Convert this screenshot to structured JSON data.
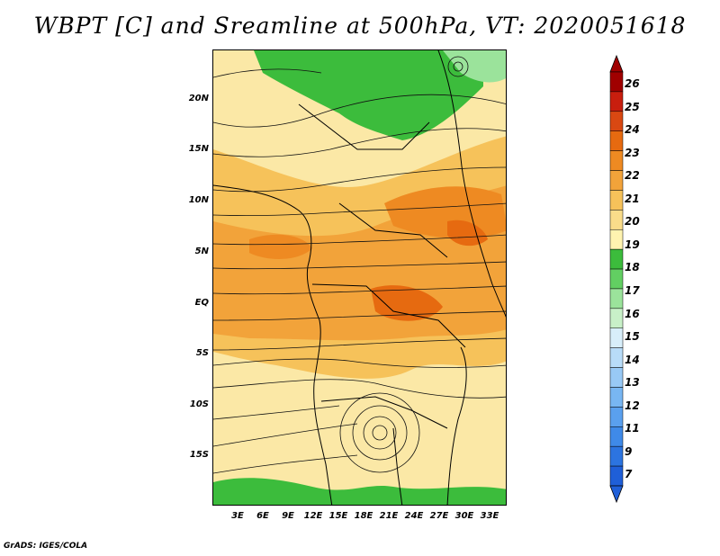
{
  "title": "WBPT [C] and Sreamline at 500hPa, VT: 2020051618",
  "credit": "GrADS: IGES/COLA",
  "map": {
    "variable": "Wet-bulb potential temperature",
    "units": "C",
    "level": "500hPa",
    "valid_time": "2020051618",
    "lat_labels": [
      "20N",
      "15N",
      "10N",
      "5N",
      "EQ",
      "5S",
      "10S",
      "15S"
    ],
    "lon_labels": [
      "3E",
      "6E",
      "9E",
      "12E",
      "15E",
      "18E",
      "21E",
      "24E",
      "27E",
      "30E",
      "33E"
    ]
  },
  "colorbar": {
    "levels": [
      "7",
      "9",
      "11",
      "12",
      "13",
      "14",
      "15",
      "16",
      "17",
      "18",
      "19",
      "20",
      "21",
      "22",
      "23",
      "24",
      "25",
      "26"
    ],
    "colors": [
      "#1f5fd8",
      "#2c74e0",
      "#3f8ae8",
      "#5aa0ee",
      "#78b6f2",
      "#98c9f5",
      "#b8dcf8",
      "#d8eefa",
      "#c8f0c8",
      "#9be39b",
      "#62cf62",
      "#3cbc3c",
      "#fff3b0",
      "#f9dc8a",
      "#f6c25a",
      "#f2a33a",
      "#ee8a22",
      "#e66a10",
      "#d94812",
      "#c81e0e",
      "#a00000"
    ]
  }
}
